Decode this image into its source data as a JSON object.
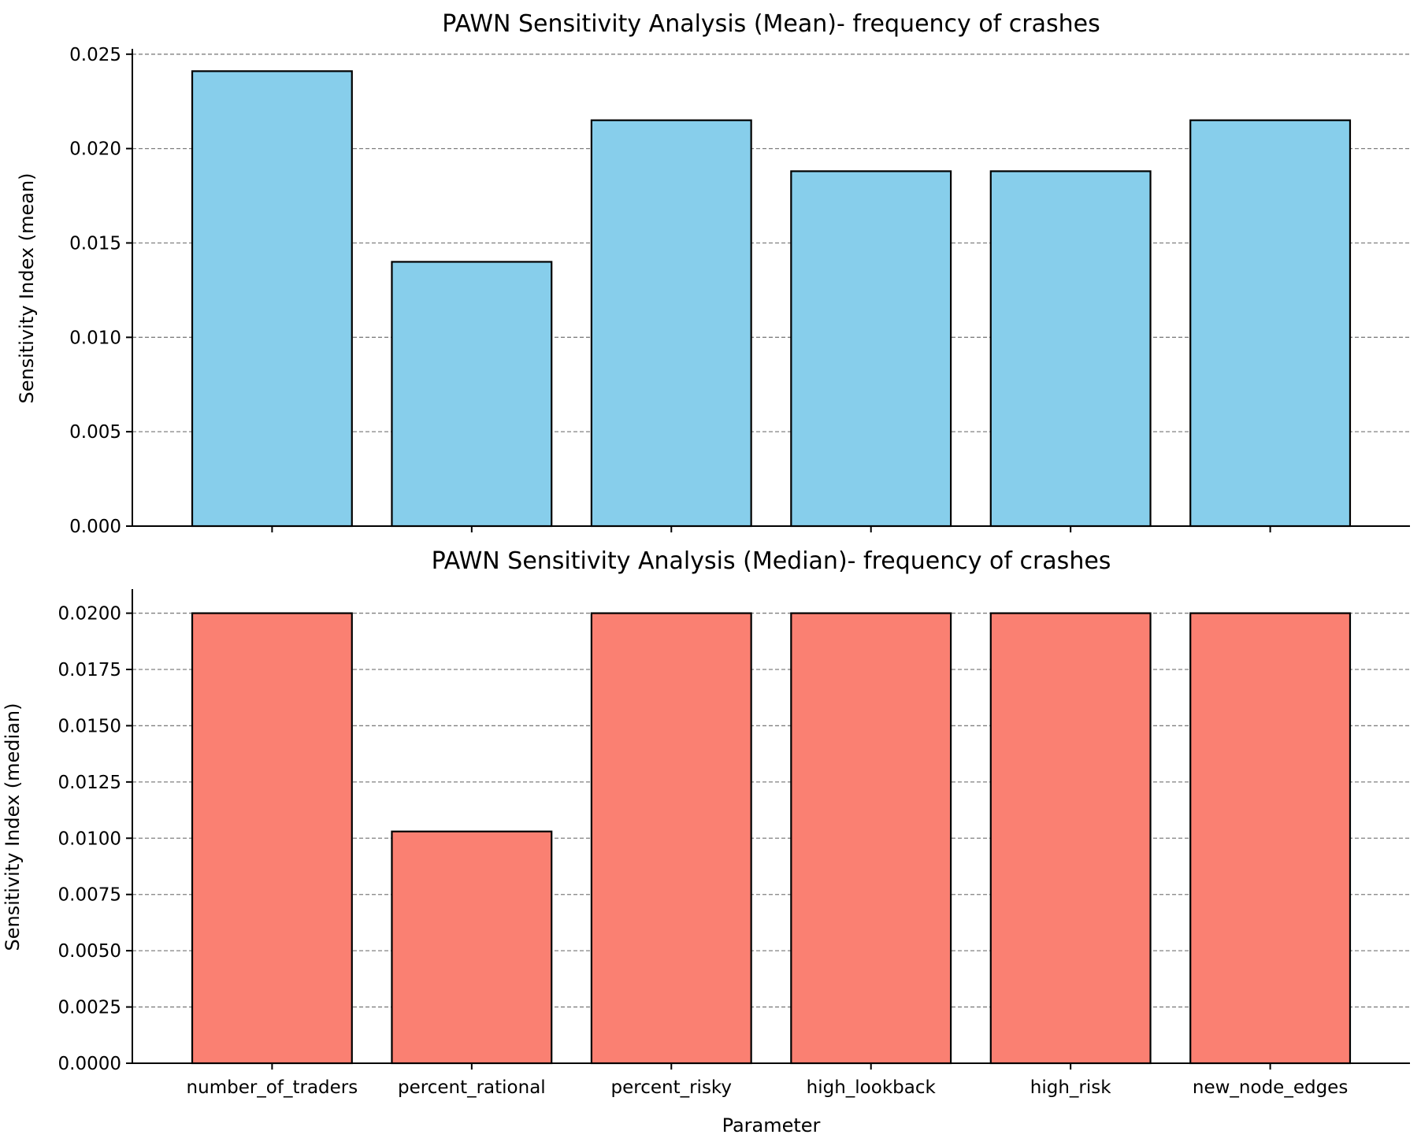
{
  "chart_data": [
    {
      "type": "bar",
      "title": "PAWN Sensitivity Analysis (Mean)- frequency of crashes",
      "ylabel": "Sensitivity Index (mean)",
      "xlabel": "",
      "categories": [
        "number_of_traders",
        "percent_rational",
        "percent_risky",
        "high_lookback",
        "high_risk",
        "new_node_edges"
      ],
      "values": [
        0.0241,
        0.014,
        0.0215,
        0.0188,
        0.0188,
        0.0215
      ],
      "ylim": [
        0,
        0.0252
      ],
      "yticks": [
        "0.000",
        "0.005",
        "0.010",
        "0.015",
        "0.020",
        "0.025"
      ],
      "show_xtick_labels": false,
      "grid": "y-dashed",
      "bar_color": "#87CEEB",
      "edge_color": "#000000"
    },
    {
      "type": "bar",
      "title": "PAWN Sensitivity Analysis (Median)- frequency of crashes",
      "ylabel": "Sensitivity Index (median)",
      "xlabel": "Parameter",
      "categories": [
        "number_of_traders",
        "percent_rational",
        "percent_risky",
        "high_lookback",
        "high_risk",
        "new_node_edges"
      ],
      "values": [
        0.02,
        0.0103,
        0.02,
        0.02,
        0.02,
        0.02
      ],
      "ylim": [
        0,
        0.021
      ],
      "yticks": [
        "0.0000",
        "0.0025",
        "0.0050",
        "0.0075",
        "0.0100",
        "0.0125",
        "0.0150",
        "0.0175",
        "0.0200"
      ],
      "show_xtick_labels": true,
      "grid": "y-dashed",
      "bar_color": "#FA8072",
      "edge_color": "#000000"
    }
  ]
}
